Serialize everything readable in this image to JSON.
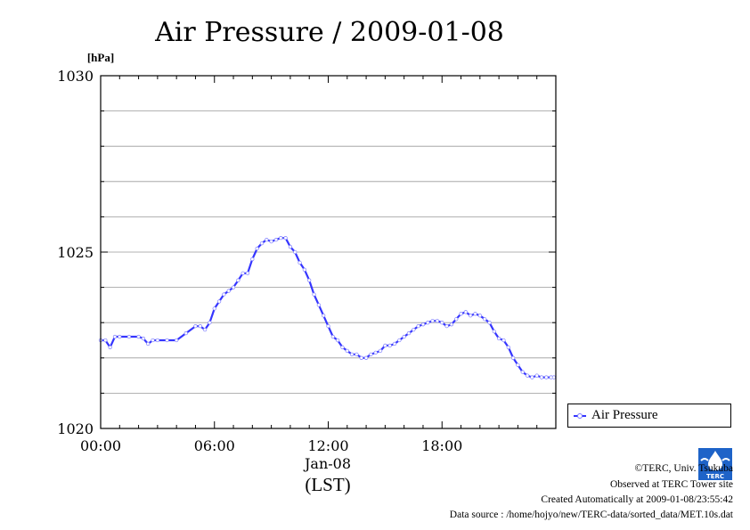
{
  "chart_data": {
    "type": "line",
    "title": "Air Pressure / 2009-01-08",
    "ylabel": "[hPa]",
    "ylim": [
      1020,
      1030
    ],
    "xlim": [
      0,
      24
    ],
    "y_ticks": [
      {
        "value": 1020,
        "label": "1020"
      },
      {
        "value": 1025,
        "label": "1025"
      },
      {
        "value": 1030,
        "label": "1030"
      }
    ],
    "y_gridlines": [
      1021,
      1022,
      1023,
      1024,
      1025,
      1026,
      1027,
      1028,
      1029
    ],
    "x_ticks": [
      {
        "value": 0,
        "label": "00:00"
      },
      {
        "value": 6,
        "label": "06:00"
      },
      {
        "value": 12,
        "label": "12:00"
      },
      {
        "value": 18,
        "label": "18:00"
      }
    ],
    "x_date_label": "Jan-08",
    "xlabel": "(LST)",
    "grid": "horizontal",
    "legend_position": "right",
    "series": [
      {
        "name": "Air Pressure",
        "color": "#3535ff",
        "marker_color": "#8080ff",
        "x": [
          0,
          0.25,
          0.5,
          0.75,
          1.0,
          1.5,
          2.0,
          2.25,
          2.5,
          2.75,
          3.0,
          3.5,
          4.0,
          4.5,
          5.0,
          5.25,
          5.5,
          5.75,
          6.0,
          6.25,
          6.5,
          6.75,
          7.0,
          7.25,
          7.5,
          7.75,
          8.0,
          8.25,
          8.5,
          8.75,
          9.0,
          9.25,
          9.5,
          9.75,
          10.0,
          10.25,
          10.5,
          10.75,
          11.0,
          11.25,
          11.5,
          11.75,
          12.0,
          12.25,
          12.5,
          12.75,
          13.0,
          13.25,
          13.5,
          13.75,
          14.0,
          14.25,
          14.5,
          14.75,
          15.0,
          15.25,
          15.5,
          15.75,
          16.0,
          16.25,
          16.5,
          16.75,
          17.0,
          17.25,
          17.5,
          17.75,
          18.0,
          18.25,
          18.5,
          18.75,
          19.0,
          19.25,
          19.5,
          19.75,
          20.0,
          20.25,
          20.5,
          20.75,
          21.0,
          21.25,
          21.5,
          21.75,
          22.0,
          22.25,
          22.5,
          22.75,
          23.0,
          23.25,
          23.5,
          23.75,
          23.9
        ],
        "values": [
          1022.5,
          1022.5,
          1022.3,
          1022.6,
          1022.6,
          1022.6,
          1022.6,
          1022.55,
          1022.4,
          1022.5,
          1022.5,
          1022.5,
          1022.5,
          1022.7,
          1022.9,
          1022.9,
          1022.8,
          1023.0,
          1023.4,
          1023.6,
          1023.8,
          1023.9,
          1024.0,
          1024.2,
          1024.4,
          1024.4,
          1024.8,
          1025.1,
          1025.25,
          1025.35,
          1025.3,
          1025.35,
          1025.4,
          1025.4,
          1025.15,
          1025.0,
          1024.7,
          1024.5,
          1024.2,
          1023.8,
          1023.5,
          1023.2,
          1022.9,
          1022.6,
          1022.5,
          1022.3,
          1022.2,
          1022.1,
          1022.1,
          1022.0,
          1022.0,
          1022.1,
          1022.15,
          1022.2,
          1022.35,
          1022.35,
          1022.4,
          1022.5,
          1022.6,
          1022.7,
          1022.8,
          1022.9,
          1022.95,
          1023.0,
          1023.05,
          1023.05,
          1023.0,
          1022.9,
          1022.95,
          1023.1,
          1023.25,
          1023.3,
          1023.2,
          1023.25,
          1023.2,
          1023.1,
          1023.0,
          1022.75,
          1022.55,
          1022.5,
          1022.3,
          1022.0,
          1021.8,
          1021.6,
          1021.5,
          1021.45,
          1021.5,
          1021.45,
          1021.45,
          1021.45,
          1021.45
        ]
      }
    ]
  },
  "legend": {
    "label": "Air Pressure"
  },
  "credits": {
    "copyright": "©TERC, Univ. Tsukuba",
    "observed": "Observed at TERC Tower site",
    "created": "Created Automatically at 2009-01-08/23:55:42",
    "source": "Data source : /home/hojyo/new/TERC-data/sorted_data/MET.10s.dat"
  },
  "logo": {
    "text": "TERC"
  }
}
